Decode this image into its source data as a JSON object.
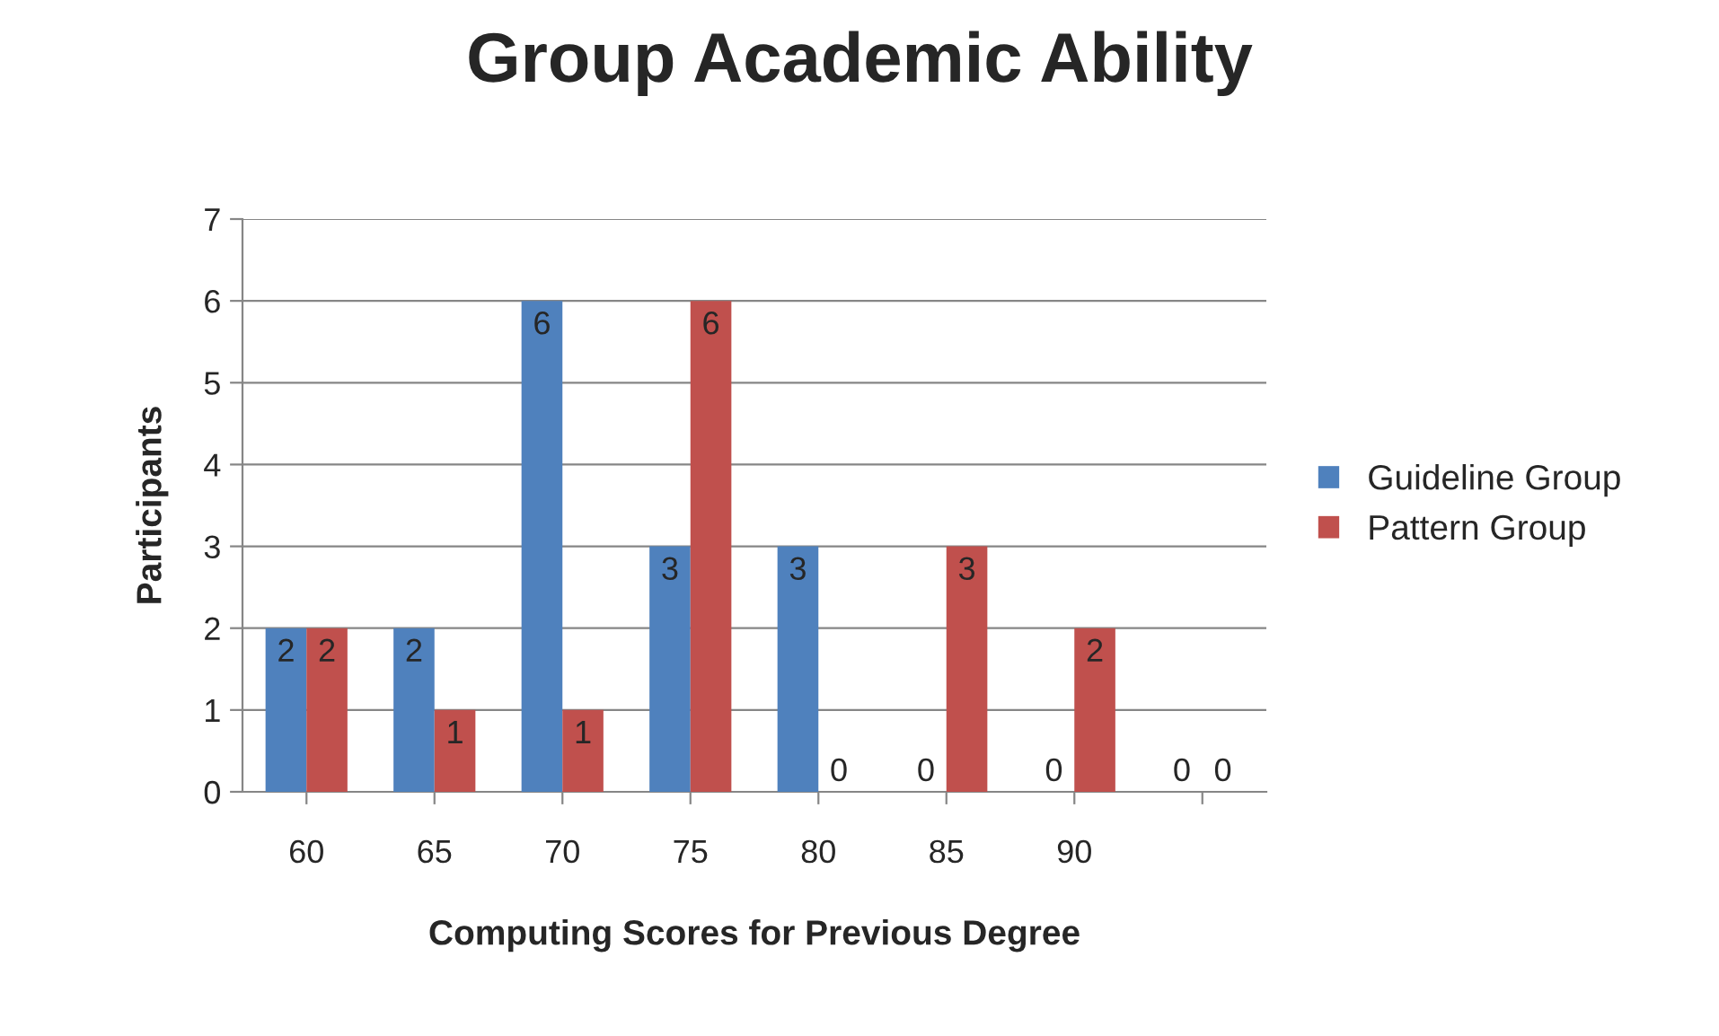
{
  "chart_data": {
    "type": "bar",
    "title": "Group Academic Ability",
    "xlabel": "Computing Scores for Previous Degree",
    "ylabel": "Participants",
    "categories": [
      "60",
      "65",
      "70",
      "75",
      "80",
      "85",
      "90",
      null
    ],
    "series": [
      {
        "name": "Guideline Group",
        "color": "#4f81bd",
        "values": [
          2,
          2,
          6,
          3,
          3,
          0,
          0,
          0
        ]
      },
      {
        "name": "Pattern Group",
        "color": "#c0504d",
        "values": [
          2,
          1,
          1,
          6,
          0,
          3,
          2,
          0
        ]
      }
    ],
    "ylim": [
      0,
      7
    ],
    "yticks": [
      0,
      1,
      2,
      3,
      4,
      5,
      6,
      7
    ],
    "grid": "y",
    "legend": "right",
    "data_labels": true
  }
}
